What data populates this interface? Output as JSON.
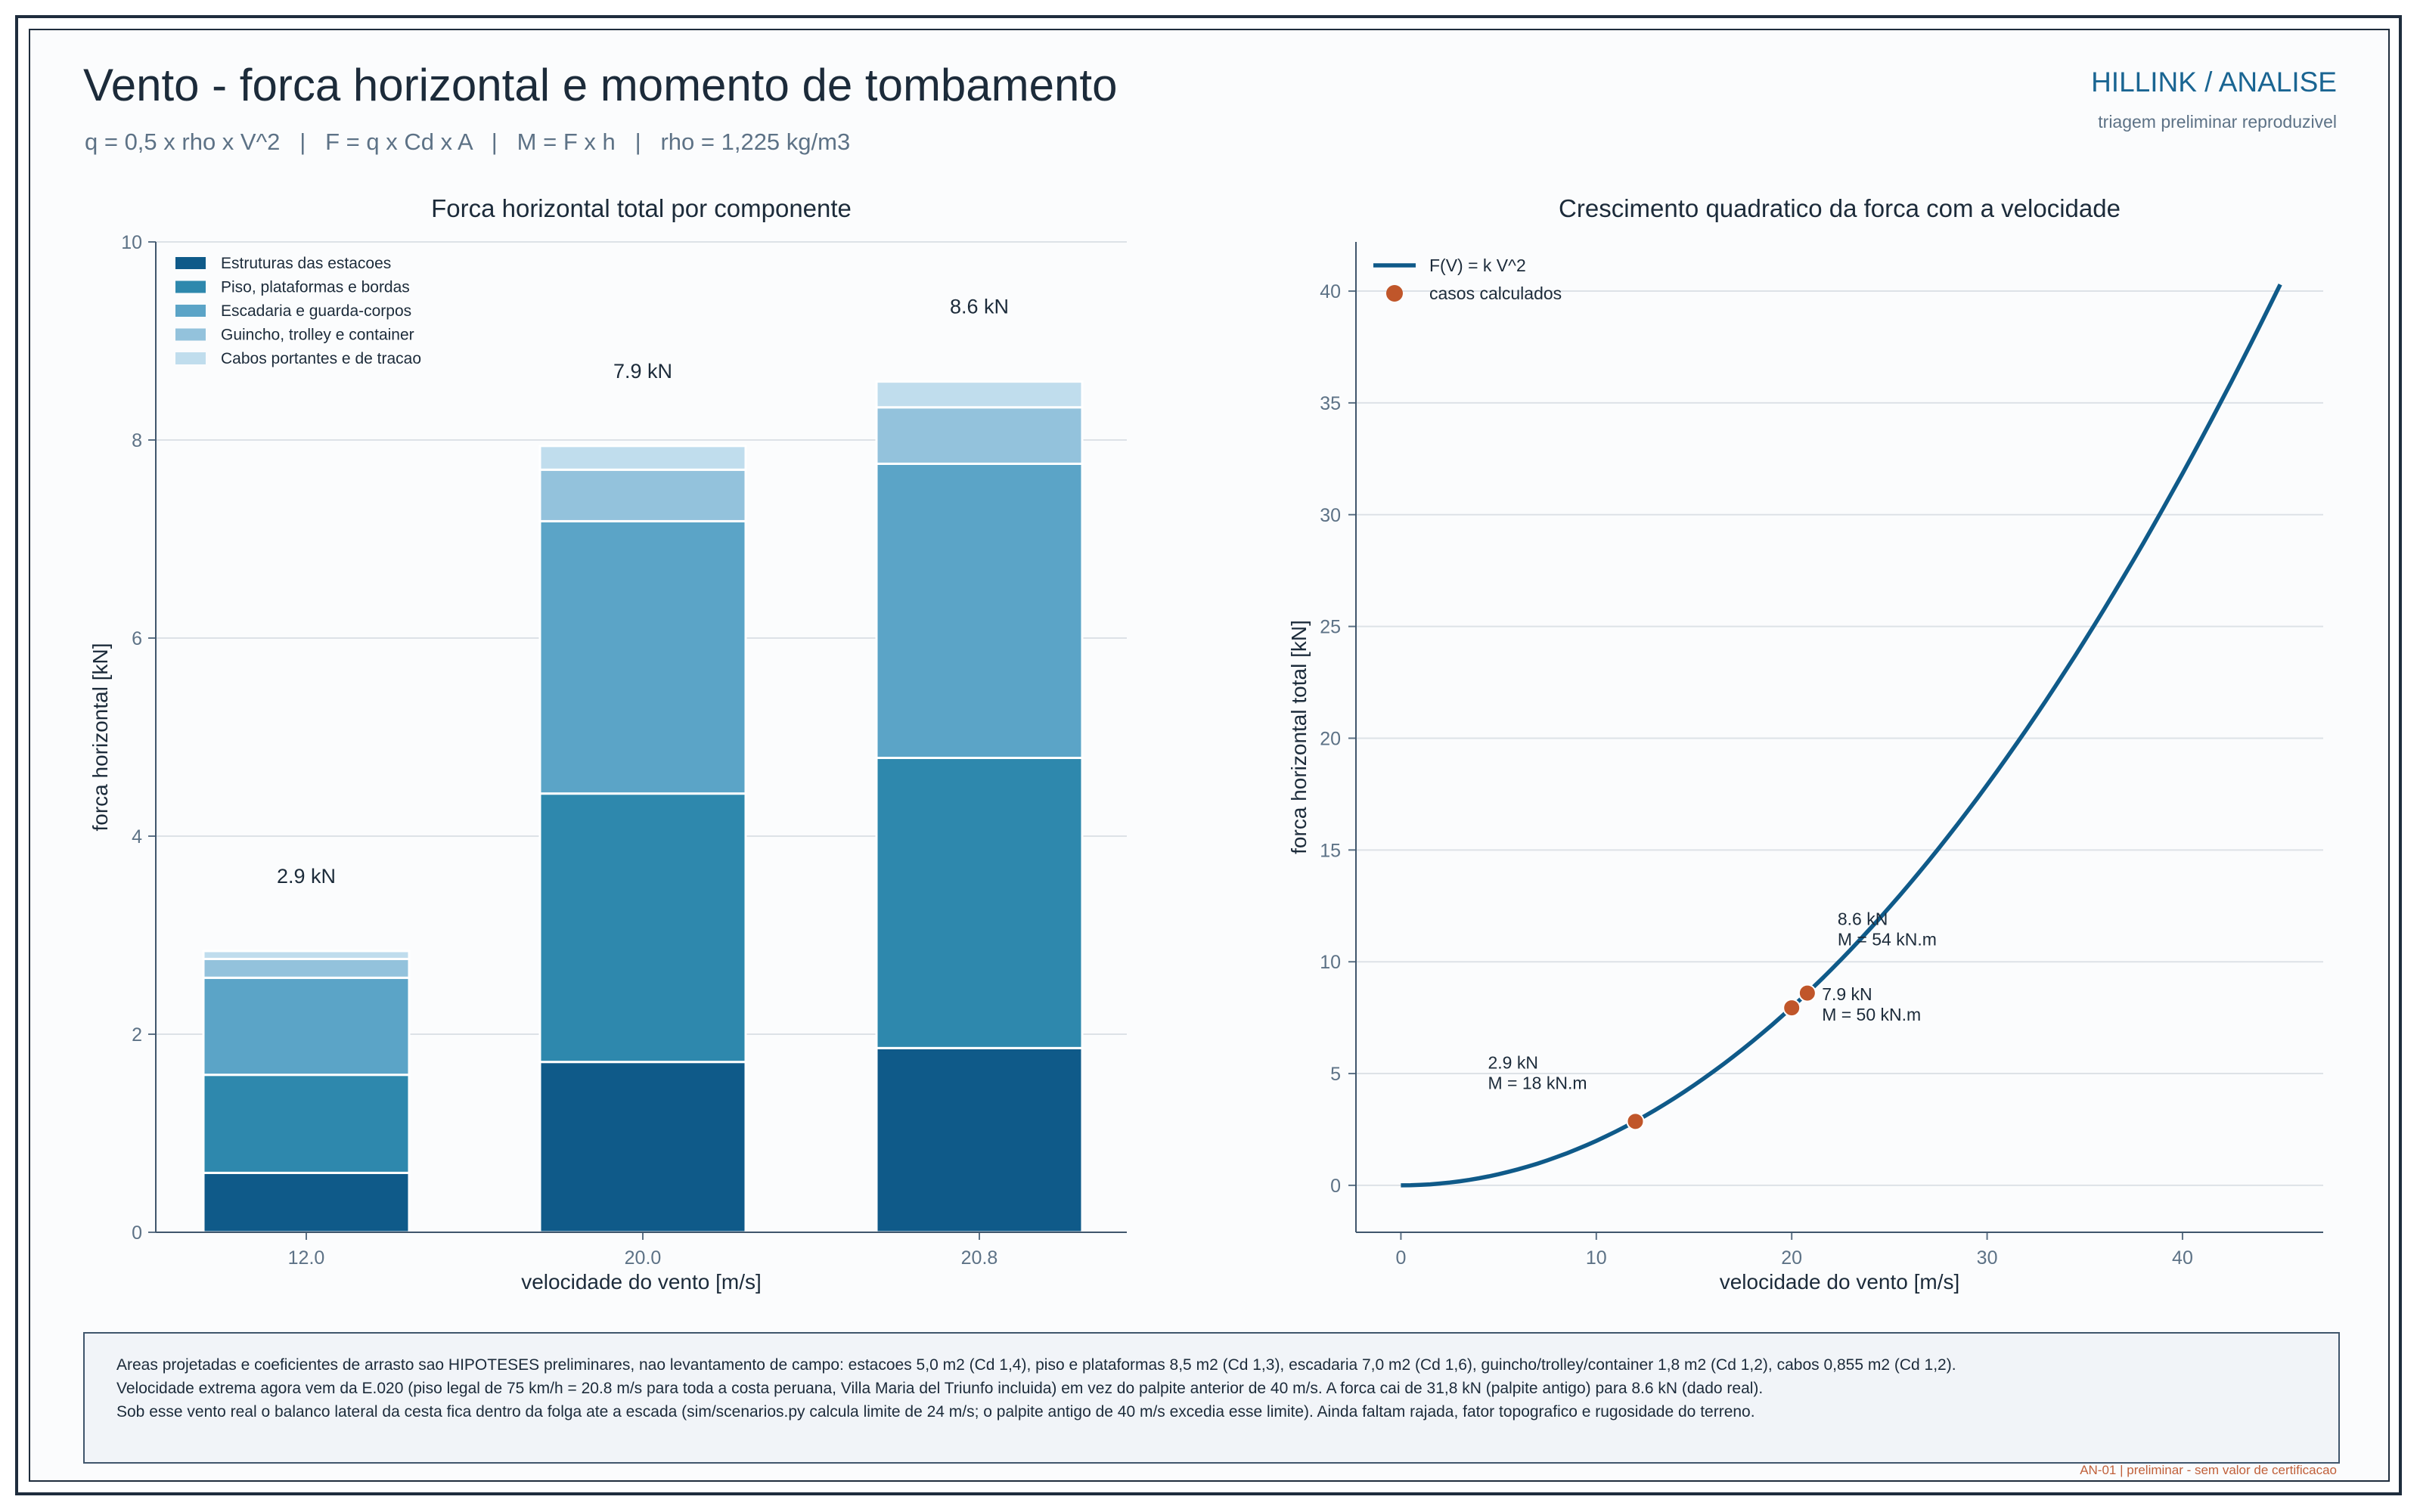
{
  "header": {
    "title": "Vento - forca horizontal e momento de tombamento",
    "subtitle": "q = 0,5 x rho x V^2   |   F = q x Cd x A   |   M = F x h   |   rho = 1,225 kg/m3",
    "brand": "HILLINK / ANALISE",
    "brand_sub": "triagem preliminar reproduzivel"
  },
  "chart_data": [
    {
      "type": "bar",
      "stacked": true,
      "title": "Forca horizontal total por componente",
      "xlabel": "velocidade do vento  [m/s]",
      "ylabel": "forca horizontal  [kN]",
      "ylim": [
        0,
        10
      ],
      "yticks": [
        "0",
        "2",
        "4",
        "6",
        "8",
        "10"
      ],
      "categories": [
        "12.0",
        "20.0",
        "20.8"
      ],
      "totals_labels": [
        "2.9 kN",
        "7.9 kN",
        "8.6 kN"
      ],
      "legend_position": "top-left",
      "grid": true,
      "series": [
        {
          "name": "Estruturas das estacoes",
          "color": "#0f5a89",
          "values": [
            0.6,
            1.72,
            1.86
          ]
        },
        {
          "name": "Piso, plataformas e bordas",
          "color": "#2e88ad",
          "values": [
            0.99,
            2.71,
            2.93
          ]
        },
        {
          "name": "Escadaria e guarda-corpos",
          "color": "#5ba4c7",
          "values": [
            0.98,
            2.75,
            2.97
          ]
        },
        {
          "name": "Guincho, trolley e container",
          "color": "#93c2dc",
          "values": [
            0.19,
            0.52,
            0.57
          ]
        },
        {
          "name": "Cabos portantes e de tracao",
          "color": "#c0dded",
          "values": [
            0.08,
            0.24,
            0.26
          ]
        }
      ]
    },
    {
      "type": "line",
      "title": "Crescimento quadratico da forca com a velocidade",
      "xlabel": "velocidade do vento  [m/s]",
      "ylabel": "forca horizontal total  [kN]",
      "xlim": [
        -2.3,
        47.2
      ],
      "ylim": [
        -2.1,
        42.2
      ],
      "xticks": [
        "0",
        "10",
        "20",
        "30",
        "40"
      ],
      "yticks": [
        "0",
        "5",
        "10",
        "15",
        "20",
        "25",
        "30",
        "35",
        "40"
      ],
      "legend_position": "top-left",
      "grid": true,
      "curve": {
        "name": "F(V) = k V^2",
        "k": 0.0199,
        "x_range": [
          0,
          45
        ],
        "color": "#0f5a89"
      },
      "points": {
        "name": "casos calculados",
        "color": "#c0562a",
        "x": [
          12.0,
          20.0,
          20.8
        ],
        "y": [
          2.86,
          7.94,
          8.6
        ],
        "labels": [
          [
            "2.9 kN",
            "M = 18 kN.m"
          ],
          [
            "7.9 kN",
            "M = 50 kN.m"
          ],
          [
            "8.6 kN",
            "M = 54 kN.m"
          ]
        ]
      }
    }
  ],
  "notes": [
    "Areas projetadas e coeficientes de arrasto sao HIPOTESES preliminares, nao levantamento de campo: estacoes 5,0 m2 (Cd 1,4), piso e plataformas 8,5 m2 (Cd 1,3), escadaria 7,0 m2 (Cd 1,6), guincho/trolley/container 1,8 m2 (Cd 1,2), cabos 0,855 m2 (Cd 1,2).",
    "Velocidade extrema agora vem da E.020 (piso legal de 75 km/h = 20.8 m/s para toda a costa peruana, Villa Maria del Triunfo incluida) em vez do palpite anterior de 40 m/s. A forca cai de 31,8 kN (palpite antigo) para 8.6 kN (dado real).",
    "Sob esse vento real o balanco lateral da cesta fica dentro da folga ate a escada (sim/scenarios.py calcula limite de 24 m/s; o palpite antigo de 40 m/s excedia esse limite). Ainda faltam rajada, fator topografico e rugosidade do terreno."
  ],
  "footer": "AN-01  |  preliminar - sem valor de certificacao"
}
